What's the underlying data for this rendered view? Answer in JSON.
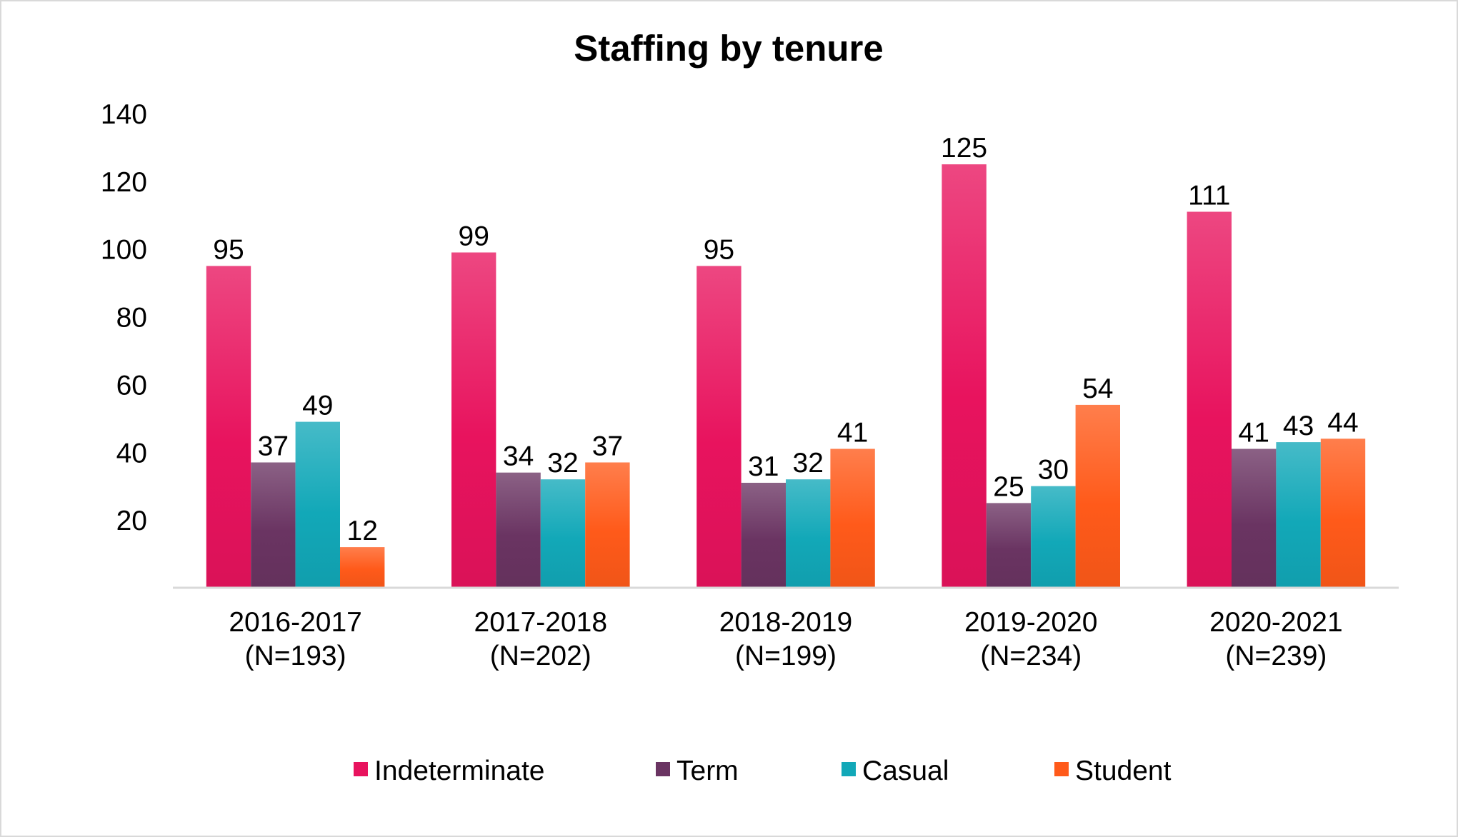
{
  "chart_data": {
    "type": "bar",
    "title": "Staffing by tenure",
    "xlabel": "",
    "ylabel": "",
    "categories": [
      [
        "2016-2017",
        "(N=193)"
      ],
      [
        "2017-2018",
        "(N=202)"
      ],
      [
        "2018-2019",
        "(N=199)"
      ],
      [
        "2019-2020",
        "(N=234)"
      ],
      [
        "2020-2021",
        "(N=239)"
      ]
    ],
    "series": [
      {
        "name": "Indeterminate",
        "values": [
          95,
          99,
          95,
          125,
          111
        ],
        "color": "#e8135e"
      },
      {
        "name": "Term",
        "values": [
          37,
          34,
          31,
          25,
          41
        ],
        "color": "#6a3462"
      },
      {
        "name": "Casual",
        "values": [
          49,
          32,
          32,
          30,
          43
        ],
        "color": "#12a8b8"
      },
      {
        "name": "Student",
        "values": [
          12,
          37,
          41,
          54,
          44
        ],
        "color": "#ff5a1a"
      }
    ],
    "ylim": [
      0,
      140
    ],
    "yticks": [
      "20",
      "40",
      "60",
      "80",
      "100",
      "120",
      "140"
    ],
    "grid": false,
    "data_labels": true,
    "legend_position": "bottom"
  }
}
